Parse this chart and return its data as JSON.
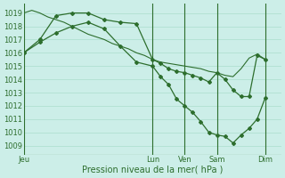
{
  "background_color": "#cceee8",
  "grid_color": "#aaddcc",
  "line_color": "#2d6e2d",
  "marker_color": "#2d6e2d",
  "ylabel_values": [
    1009,
    1010,
    1011,
    1012,
    1013,
    1014,
    1015,
    1016,
    1017,
    1018,
    1019
  ],
  "ylim": [
    1008.3,
    1019.7
  ],
  "xlim": [
    0,
    96
  ],
  "xlabel": "Pression niveau de la mer( hPa )",
  "xtick_labels": [
    "Jeu",
    "Lun",
    "Ven",
    "Sam",
    "Dim"
  ],
  "xtick_positions": [
    0,
    48,
    60,
    72,
    90
  ],
  "vlines": [
    0,
    48,
    60,
    72,
    90
  ],
  "series1_x": [
    0,
    3,
    6,
    9,
    12,
    15,
    18,
    21,
    24,
    27,
    30,
    33,
    36,
    39,
    42,
    45,
    48,
    51,
    54,
    57,
    60,
    63,
    66,
    69,
    72,
    75,
    78,
    81,
    84,
    87,
    90
  ],
  "series1_y": [
    1019.0,
    1019.2,
    1019.0,
    1018.7,
    1018.5,
    1018.3,
    1018.0,
    1017.7,
    1017.4,
    1017.2,
    1017.0,
    1016.7,
    1016.5,
    1016.3,
    1016.0,
    1015.8,
    1015.5,
    1015.3,
    1015.2,
    1015.1,
    1015.0,
    1014.9,
    1014.8,
    1014.6,
    1014.5,
    1014.3,
    1014.2,
    1014.8,
    1015.6,
    1015.9,
    1015.5
  ],
  "series2_x": [
    0,
    6,
    12,
    18,
    24,
    30,
    36,
    42,
    48,
    51,
    54,
    57,
    60,
    63,
    66,
    69,
    72,
    75,
    78,
    81,
    84,
    87,
    90
  ],
  "series2_y": [
    1016.0,
    1017.0,
    1018.8,
    1019.0,
    1019.0,
    1018.5,
    1018.3,
    1018.2,
    1015.5,
    1015.2,
    1014.8,
    1014.6,
    1014.5,
    1014.3,
    1014.1,
    1013.8,
    1014.5,
    1014.0,
    1013.2,
    1012.7,
    1012.7,
    1015.8,
    1015.5
  ],
  "series3_x": [
    0,
    6,
    12,
    18,
    24,
    30,
    36,
    42,
    48,
    51,
    54,
    57,
    60,
    63,
    66,
    69,
    72,
    75,
    78,
    81,
    84,
    87,
    90
  ],
  "series3_y": [
    1016.0,
    1016.8,
    1017.5,
    1018.0,
    1018.3,
    1017.8,
    1016.5,
    1015.3,
    1015.0,
    1014.2,
    1013.6,
    1012.5,
    1012.0,
    1011.5,
    1010.8,
    1010.0,
    1009.8,
    1009.7,
    1009.2,
    1009.8,
    1010.3,
    1011.0,
    1012.6
  ]
}
